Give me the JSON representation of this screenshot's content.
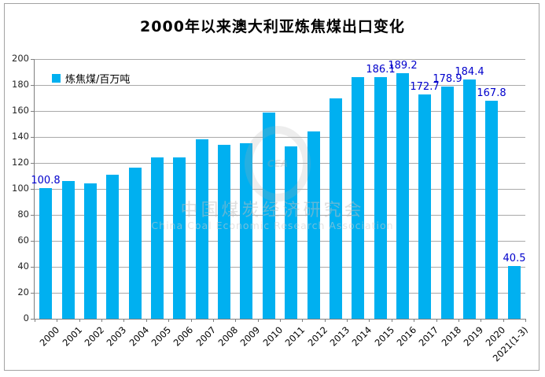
{
  "title": "2000年以来澳大利亚炼焦煤出口变化",
  "legend": {
    "label": "炼焦煤/百万吨"
  },
  "watermark": {
    "line1": "中国煤炭经济研究会",
    "line2": "China Coal Economic Research Association",
    "logo_text": "CEA"
  },
  "colors": {
    "bar": "#00b0f0",
    "data_label": "#0000cc",
    "gridline": "#a9a9a9",
    "axis": "#7f7f7f"
  },
  "chart_data": {
    "type": "bar",
    "title": "2000年以来澳大利亚炼焦煤出口变化",
    "series_name": "炼焦煤/百万吨",
    "categories": [
      "2000",
      "2001",
      "2002",
      "2003",
      "2004",
      "2005",
      "2006",
      "2007",
      "2008",
      "2009",
      "2010",
      "2011",
      "2012",
      "2013",
      "2014",
      "2015",
      "2016",
      "2017",
      "2018",
      "2019",
      "2020",
      "2021(1-3)"
    ],
    "values": [
      100.8,
      106,
      104,
      111,
      116.5,
      124.5,
      124,
      138,
      134,
      135,
      158.5,
      132.5,
      144.5,
      169.7,
      186,
      186.1,
      189.2,
      172.7,
      178.9,
      184.4,
      167.8,
      40.5
    ],
    "point_labels": [
      "100.8",
      null,
      null,
      null,
      null,
      null,
      null,
      null,
      null,
      null,
      null,
      null,
      null,
      null,
      null,
      "186.1",
      "189.2",
      "172.7",
      "178.9",
      "184.4",
      "167.8",
      "40.5"
    ],
    "ylim": [
      0,
      200
    ],
    "yticks": [
      0,
      20,
      40,
      60,
      80,
      100,
      120,
      140,
      160,
      180,
      200
    ],
    "grid": true,
    "legend_position": "top-left-inside",
    "xlabel": "",
    "ylabel": ""
  }
}
